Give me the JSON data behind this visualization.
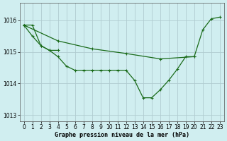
{
  "background_color": "#d0eef0",
  "plot_bg_color": "#d0eef0",
  "grid_color": "#b0ccd0",
  "line_color": "#1a6b1a",
  "marker_color": "#1a6b1a",
  "xlabel": "Graphe pression niveau de la mer (hPa)",
  "xlim": [
    -0.5,
    23.5
  ],
  "ylim": [
    1012.8,
    1016.55
  ],
  "yticks": [
    1013,
    1014,
    1015,
    1016
  ],
  "xticks": [
    0,
    1,
    2,
    3,
    4,
    5,
    6,
    7,
    8,
    9,
    10,
    11,
    12,
    13,
    14,
    15,
    16,
    17,
    18,
    19,
    20,
    21,
    22,
    23
  ],
  "series0_x": [
    0,
    1,
    2,
    3,
    4,
    5,
    6,
    7,
    8,
    9,
    10,
    11,
    12,
    13,
    14,
    15,
    16,
    17,
    18,
    19,
    20,
    21,
    22,
    23
  ],
  "series0_y": [
    1015.85,
    1015.85,
    1015.2,
    1015.05,
    1014.85,
    1014.55,
    1014.42,
    1014.42,
    1014.42,
    1014.42,
    1014.42,
    1014.42,
    1014.42,
    1014.1,
    1013.55,
    1013.55,
    1013.8,
    1014.1,
    1014.45,
    1014.85,
    1014.85,
    1015.7,
    1016.05,
    1016.1
  ],
  "series1_x": [
    0,
    4,
    8,
    12,
    16,
    20
  ],
  "series1_y": [
    1015.85,
    1015.35,
    1015.1,
    1014.95,
    1014.78,
    1014.85
  ],
  "series2_x": [
    0,
    1,
    2,
    3,
    4
  ],
  "series2_y": [
    1015.85,
    1015.5,
    1015.2,
    1015.05,
    1015.05
  ]
}
